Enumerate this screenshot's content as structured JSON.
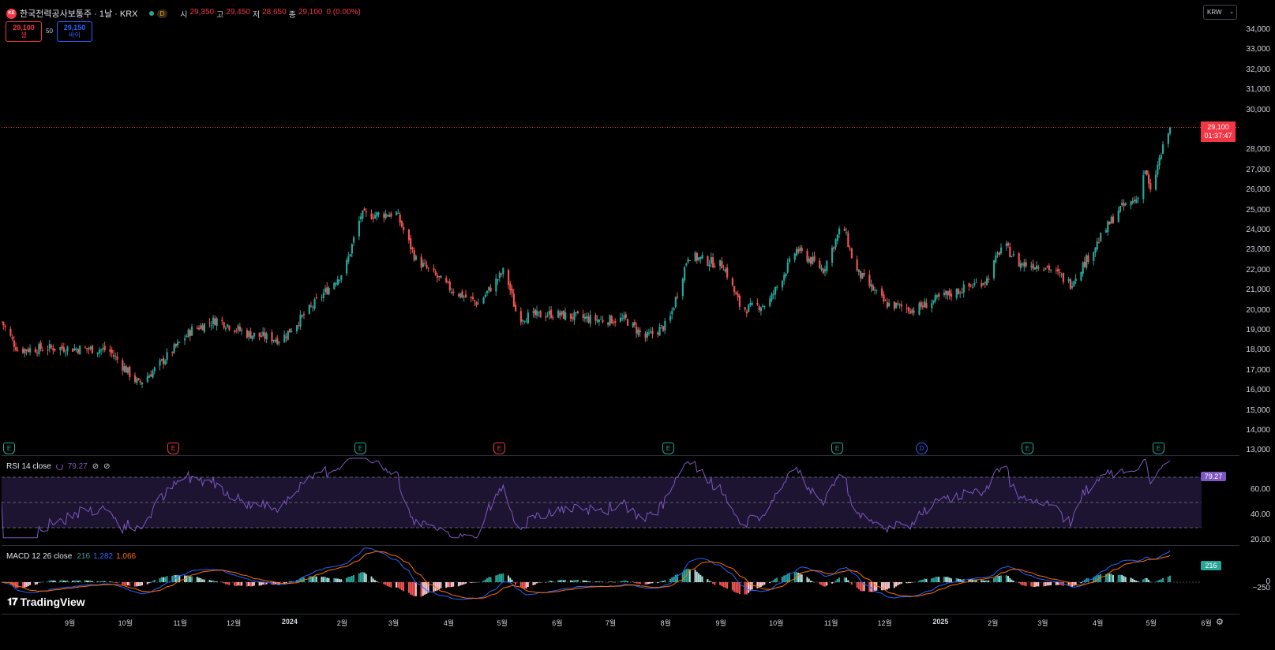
{
  "symbol": {
    "logo_text": "KE",
    "title": "한국전력공사보통주 · 1날 · KRX",
    "interval_badge": "D",
    "ohlc": [
      {
        "label": "시",
        "value": "29,350"
      },
      {
        "label": "고",
        "value": "29,450"
      },
      {
        "label": "저",
        "value": "28,650"
      },
      {
        "label": "종",
        "value": "29,100"
      }
    ],
    "change": "0 (0.00%)"
  },
  "trade": {
    "sell_price": "29,100",
    "sell_label": "셀",
    "spread": "50",
    "buy_price": "29,150",
    "buy_label": "바이"
  },
  "currency": "KRW",
  "last_price": "29,100",
  "countdown": "01:37:47",
  "price_axis": [
    "34,000",
    "33,000",
    "32,000",
    "31,000",
    "30,000",
    "28,000",
    "27,000",
    "26,000",
    "25,000",
    "24,000",
    "23,000",
    "22,000",
    "21,000",
    "20,000",
    "19,000",
    "18,000",
    "17,000",
    "16,000",
    "15,000",
    "14,000",
    "13,000"
  ],
  "events": [
    "E",
    "E",
    "E",
    "E",
    "E",
    "E",
    "D",
    "E",
    "E"
  ],
  "rsi": {
    "label": "RSI 14 close",
    "value": "79.27",
    "icons": [
      "⊘",
      "⊘"
    ],
    "axis": [
      "60.00",
      "40.00",
      "20.00"
    ]
  },
  "macd": {
    "label": "MACD 12 26 close",
    "hist": "216",
    "macd": "1,282",
    "signal": "1,066",
    "axis": [
      "0",
      "−250"
    ],
    "value_badge": "216"
  },
  "time_axis": [
    "9월",
    "10월",
    "11월",
    "12월",
    "2024",
    "2월",
    "3월",
    "4월",
    "5월",
    "6월",
    "7월",
    "8월",
    "9월",
    "10월",
    "11월",
    "12월",
    "2025",
    "2월",
    "3월",
    "4월",
    "5월",
    "6월"
  ],
  "brand": "TradingView",
  "colors": {
    "up": "#26a69a",
    "down": "#ef5350",
    "rsi": "#7e57c2",
    "macd": "#2962ff",
    "signal": "#ff6d00",
    "accent": "#f23645"
  },
  "chart_data": {
    "type": "candlestick",
    "ylim": [
      13000,
      34500
    ],
    "last": 29100,
    "anchors": [
      {
        "date": "2023-08-16",
        "close": 19400
      },
      {
        "date": "2023-08-25",
        "close": 18000
      },
      {
        "date": "2023-09-15",
        "close": 18100
      },
      {
        "date": "2023-10-15",
        "close": 18000
      },
      {
        "date": "2023-11-01",
        "close": 16300
      },
      {
        "date": "2023-11-10",
        "close": 17000
      },
      {
        "date": "2023-12-01",
        "close": 19000
      },
      {
        "date": "2023-12-15",
        "close": 19500
      },
      {
        "date": "2024-01-01",
        "close": 18800
      },
      {
        "date": "2024-01-20",
        "close": 18500
      },
      {
        "date": "2024-02-05",
        "close": 20000
      },
      {
        "date": "2024-02-25",
        "close": 22000
      },
      {
        "date": "2024-03-05",
        "close": 24700
      },
      {
        "date": "2024-03-25",
        "close": 24800
      },
      {
        "date": "2024-04-05",
        "close": 22500
      },
      {
        "date": "2024-04-25",
        "close": 21000
      },
      {
        "date": "2024-05-10",
        "close": 20300
      },
      {
        "date": "2024-05-25",
        "close": 22000
      },
      {
        "date": "2024-06-01",
        "close": 19600
      },
      {
        "date": "2024-06-20",
        "close": 19800
      },
      {
        "date": "2024-07-15",
        "close": 19500
      },
      {
        "date": "2024-08-01",
        "close": 19500
      },
      {
        "date": "2024-08-12",
        "close": 18600
      },
      {
        "date": "2024-08-25",
        "close": 19300
      },
      {
        "date": "2024-09-05",
        "close": 22700
      },
      {
        "date": "2024-09-25",
        "close": 22200
      },
      {
        "date": "2024-10-05",
        "close": 20000
      },
      {
        "date": "2024-10-20",
        "close": 20300
      },
      {
        "date": "2024-11-05",
        "close": 23000
      },
      {
        "date": "2024-11-20",
        "close": 22000
      },
      {
        "date": "2024-12-01",
        "close": 24300
      },
      {
        "date": "2024-12-08",
        "close": 22000
      },
      {
        "date": "2024-12-25",
        "close": 20300
      },
      {
        "date": "2025-01-10",
        "close": 20000
      },
      {
        "date": "2025-01-25",
        "close": 20600
      },
      {
        "date": "2025-02-20",
        "close": 21500
      },
      {
        "date": "2025-03-01",
        "close": 23300
      },
      {
        "date": "2025-03-10",
        "close": 22300
      },
      {
        "date": "2025-03-25",
        "close": 22200
      },
      {
        "date": "2025-04-08",
        "close": 21300
      },
      {
        "date": "2025-04-20",
        "close": 22900
      },
      {
        "date": "2025-05-05",
        "close": 25000
      },
      {
        "date": "2025-05-15",
        "close": 25500
      },
      {
        "date": "2025-05-20",
        "close": 27000
      },
      {
        "date": "2025-05-23",
        "close": 25800
      },
      {
        "date": "2025-05-28",
        "close": 27500
      },
      {
        "date": "2025-06-03",
        "close": 29100
      }
    ]
  }
}
